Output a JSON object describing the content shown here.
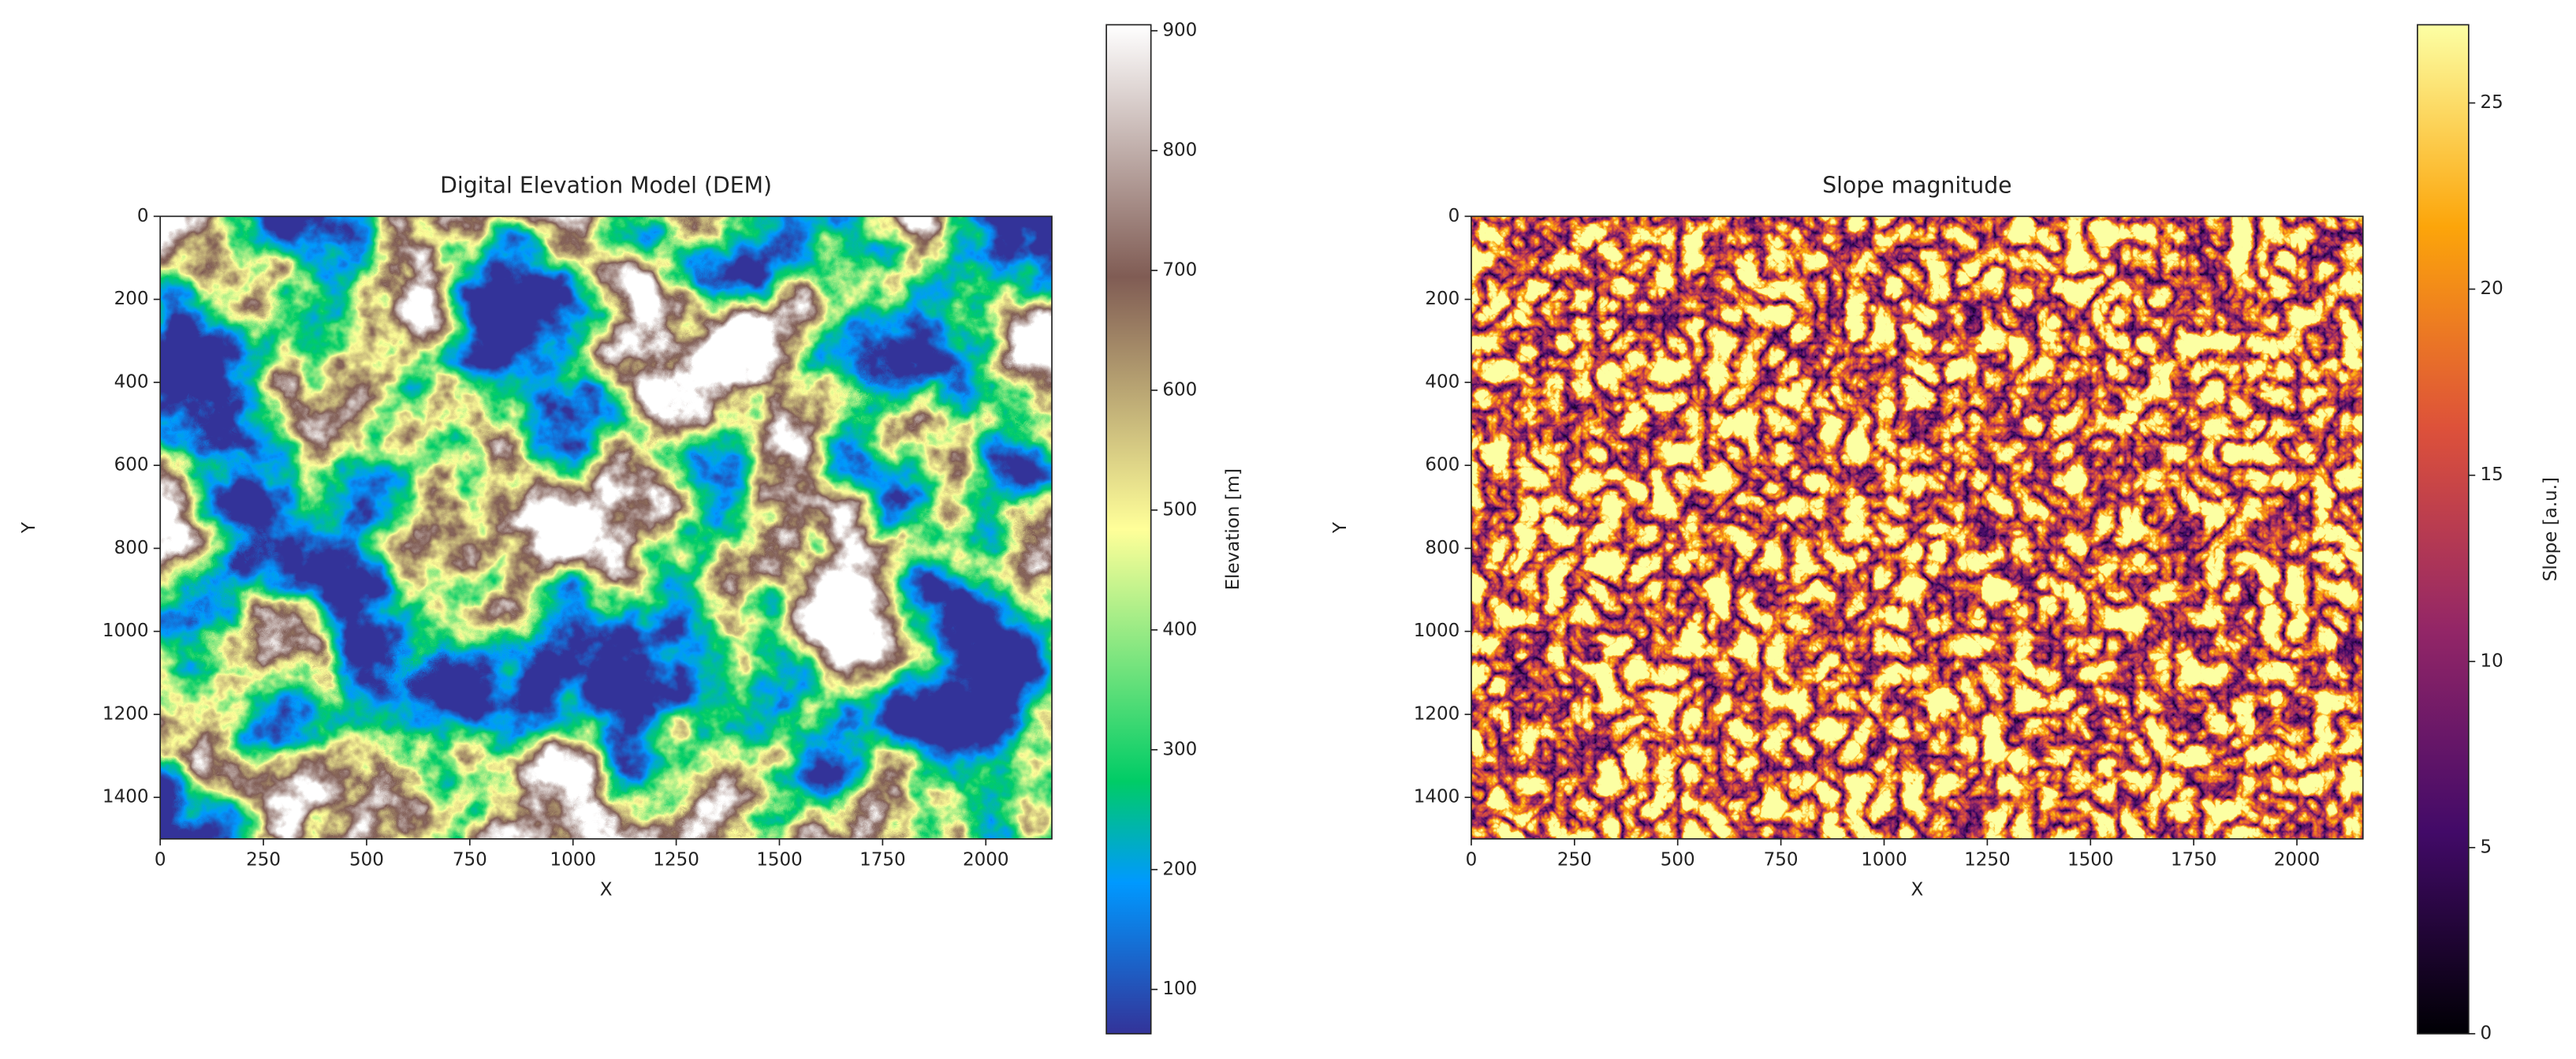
{
  "chart_data": [
    {
      "type": "image",
      "title": "Digital Elevation Model (DEM)",
      "xlabel": "X",
      "ylabel": "Y",
      "xlim": [
        0,
        2160
      ],
      "ylim": [
        1500,
        0
      ],
      "xticks": [
        0,
        250,
        500,
        750,
        1000,
        1250,
        1500,
        1750,
        2000
      ],
      "yticks": [
        0,
        200,
        400,
        600,
        800,
        1000,
        1200,
        1400
      ],
      "colormap": "terrain",
      "colorbar_label": "Elevation [m]",
      "clim": [
        63,
        905
      ],
      "colorbar_ticks": [
        100,
        200,
        300,
        400,
        500,
        600,
        700,
        800,
        900
      ]
    },
    {
      "type": "image",
      "title": "Slope magnitude",
      "xlabel": "X",
      "ylabel": "Y",
      "xlim": [
        0,
        2160
      ],
      "ylim": [
        1500,
        0
      ],
      "xticks": [
        0,
        250,
        500,
        750,
        1000,
        1250,
        1500,
        1750,
        2000
      ],
      "yticks": [
        0,
        200,
        400,
        600,
        800,
        1000,
        1200,
        1400
      ],
      "colormap": "inferno",
      "colorbar_label": "Slope [a.u.]",
      "clim": [
        0,
        27.1
      ],
      "colorbar_ticks": [
        0,
        5,
        10,
        15,
        20,
        25
      ]
    }
  ]
}
